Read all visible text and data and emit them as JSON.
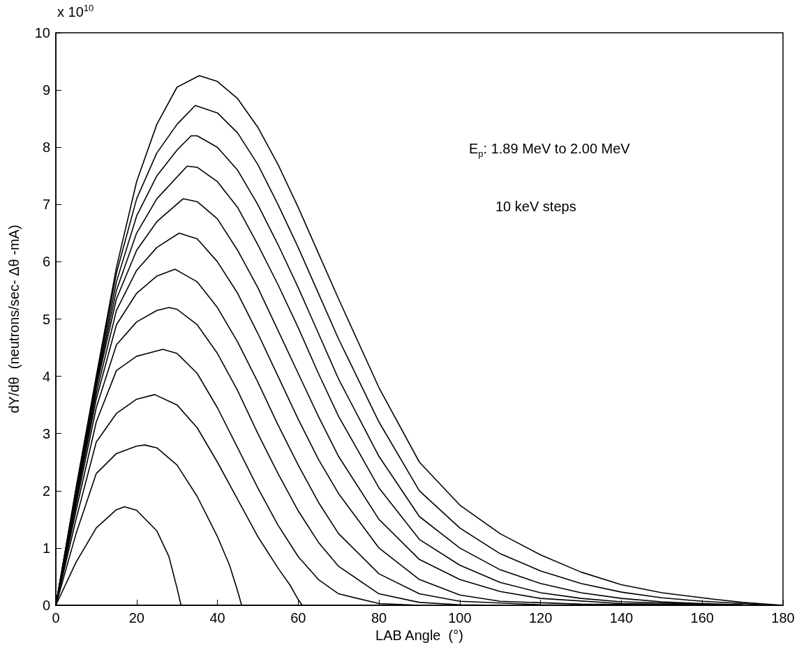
{
  "chart_data": {
    "type": "line",
    "xlabel": "LAB Angle  (°)",
    "ylabel": "dY/dθ  (neutrons/sec- Δθ -mA)",
    "annotations": [
      "x 10$^{10}$",
      "E$_{p}$: 1.89 MeV to 2.00 MeV",
      "10 keV steps"
    ],
    "xlim": [
      0,
      180
    ],
    "ylim": [
      0,
      10
    ],
    "xticks": [
      0,
      20,
      40,
      60,
      80,
      100,
      120,
      140,
      160,
      180
    ],
    "yticks": [
      0,
      1,
      2,
      3,
      4,
      5,
      6,
      7,
      8,
      9,
      10
    ],
    "grid": false,
    "marker": "none",
    "line_style": "solid",
    "series": [
      {
        "color": "#000000",
        "x": [
          0,
          5,
          10,
          15,
          17,
          20,
          25,
          28,
          30,
          31
        ],
        "values": [
          0,
          0.75,
          1.35,
          1.67,
          1.72,
          1.66,
          1.3,
          0.85,
          0.3,
          0
        ]
      },
      {
        "color": "#000000",
        "x": [
          0,
          5,
          10,
          15,
          20,
          22,
          25,
          30,
          35,
          40,
          43,
          45,
          46
        ],
        "values": [
          0,
          1.25,
          2.3,
          2.65,
          2.78,
          2.8,
          2.75,
          2.45,
          1.9,
          1.2,
          0.7,
          0.25,
          0
        ]
      },
      {
        "color": "#000000",
        "x": [
          0,
          5,
          10,
          15,
          20,
          24.5,
          30,
          35,
          40,
          45,
          50,
          55,
          58,
          60,
          61
        ],
        "values": [
          0,
          1.5,
          2.85,
          3.35,
          3.6,
          3.68,
          3.5,
          3.1,
          2.5,
          1.85,
          1.2,
          0.65,
          0.35,
          0.1,
          0
        ]
      },
      {
        "color": "#000000",
        "x": [
          0,
          5,
          10,
          15,
          20,
          26.5,
          30,
          35,
          40,
          45,
          50,
          55,
          60,
          65,
          70,
          80,
          90
        ],
        "values": [
          0,
          1.65,
          3.2,
          4.1,
          4.35,
          4.47,
          4.4,
          4.05,
          3.45,
          2.75,
          2.05,
          1.4,
          0.85,
          0.45,
          0.2,
          0.03,
          0
        ]
      },
      {
        "color": "#000000",
        "x": [
          0,
          5,
          10,
          15,
          20,
          25,
          28,
          30,
          35,
          40,
          45,
          50,
          55,
          60,
          65,
          70,
          80,
          90,
          100,
          110
        ],
        "values": [
          0,
          1.75,
          3.45,
          4.55,
          4.95,
          5.15,
          5.2,
          5.17,
          4.9,
          4.4,
          3.75,
          3.0,
          2.3,
          1.65,
          1.1,
          0.68,
          0.2,
          0.05,
          0.01,
          0
        ]
      },
      {
        "color": "#000000",
        "x": [
          0,
          5,
          10,
          15,
          20,
          25,
          29.5,
          35,
          40,
          45,
          50,
          55,
          60,
          65,
          70,
          80,
          90,
          100,
          120,
          130
        ],
        "values": [
          0,
          1.82,
          3.6,
          4.9,
          5.45,
          5.75,
          5.87,
          5.65,
          5.2,
          4.6,
          3.9,
          3.15,
          2.45,
          1.8,
          1.25,
          0.55,
          0.2,
          0.07,
          0.01,
          0
        ]
      },
      {
        "color": "#000000",
        "x": [
          0,
          5,
          10,
          15,
          20,
          25,
          30.5,
          35,
          40,
          45,
          50,
          55,
          60,
          65,
          70,
          80,
          90,
          100,
          110,
          130,
          150
        ],
        "values": [
          0,
          1.88,
          3.7,
          5.15,
          5.85,
          6.25,
          6.5,
          6.4,
          6.0,
          5.45,
          4.75,
          4.0,
          3.25,
          2.55,
          1.95,
          1.0,
          0.45,
          0.18,
          0.07,
          0.02,
          0.01
        ]
      },
      {
        "color": "#000000",
        "x": [
          0,
          5,
          10,
          15,
          20,
          25,
          31.5,
          35,
          40,
          45,
          50,
          55,
          60,
          65,
          70,
          80,
          90,
          100,
          110,
          120,
          140,
          160
        ],
        "values": [
          0,
          1.92,
          3.8,
          5.35,
          6.2,
          6.7,
          7.1,
          7.05,
          6.75,
          6.2,
          5.55,
          4.8,
          4.05,
          3.3,
          2.6,
          1.5,
          0.8,
          0.45,
          0.24,
          0.12,
          0.03,
          0.01
        ]
      },
      {
        "color": "#000000",
        "x": [
          0,
          5,
          10,
          15,
          20,
          25,
          32.5,
          35,
          40,
          45,
          50,
          55,
          60,
          65,
          70,
          80,
          90,
          100,
          110,
          120,
          130,
          140,
          160,
          170
        ],
        "values": [
          0,
          1.96,
          3.85,
          5.5,
          6.5,
          7.1,
          7.67,
          7.65,
          7.4,
          6.95,
          6.3,
          5.6,
          4.85,
          4.05,
          3.3,
          2.05,
          1.15,
          0.7,
          0.4,
          0.22,
          0.12,
          0.06,
          0.02,
          0.01
        ]
      },
      {
        "color": "#000000",
        "x": [
          0,
          5,
          10,
          15,
          20,
          25,
          30,
          33.5,
          35,
          40,
          45,
          50,
          55,
          60,
          65,
          70,
          80,
          90,
          100,
          110,
          120,
          130,
          140,
          150,
          160,
          170
        ],
        "values": [
          0,
          2.0,
          3.9,
          5.65,
          6.8,
          7.5,
          7.95,
          8.2,
          8.2,
          8.0,
          7.6,
          7.0,
          6.3,
          5.55,
          4.75,
          3.95,
          2.6,
          1.55,
          1.0,
          0.62,
          0.38,
          0.22,
          0.12,
          0.06,
          0.03,
          0.01
        ]
      },
      {
        "color": "#000000",
        "x": [
          0,
          5,
          10,
          15,
          20,
          25,
          30,
          34.5,
          40,
          45,
          50,
          55,
          60,
          65,
          70,
          80,
          90,
          100,
          110,
          120,
          130,
          140,
          150,
          160,
          170,
          175
        ],
        "values": [
          0,
          2.02,
          3.95,
          5.8,
          7.1,
          7.9,
          8.4,
          8.73,
          8.6,
          8.25,
          7.7,
          7.0,
          6.25,
          5.45,
          4.65,
          3.2,
          2.0,
          1.35,
          0.9,
          0.6,
          0.38,
          0.23,
          0.13,
          0.07,
          0.03,
          0.01
        ]
      },
      {
        "color": "#000000",
        "x": [
          0,
          5,
          10,
          15,
          20,
          25,
          30,
          35.5,
          40,
          45,
          50,
          55,
          60,
          65,
          70,
          80,
          90,
          100,
          110,
          120,
          130,
          140,
          150,
          160,
          170,
          180
        ],
        "values": [
          0,
          2.05,
          4.0,
          5.9,
          7.4,
          8.4,
          9.05,
          9.25,
          9.15,
          8.85,
          8.35,
          7.7,
          6.95,
          6.15,
          5.35,
          3.8,
          2.5,
          1.75,
          1.25,
          0.88,
          0.58,
          0.36,
          0.22,
          0.13,
          0.05,
          0
        ]
      }
    ]
  }
}
